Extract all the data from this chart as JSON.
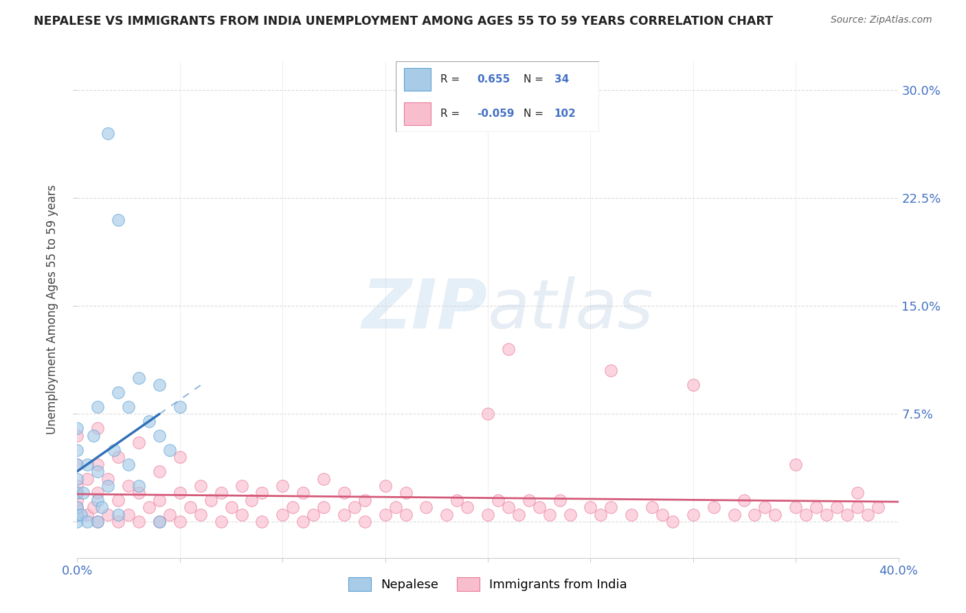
{
  "title": "NEPALESE VS IMMIGRANTS FROM INDIA UNEMPLOYMENT AMONG AGES 55 TO 59 YEARS CORRELATION CHART",
  "source": "Source: ZipAtlas.com",
  "ylabel": "Unemployment Among Ages 55 to 59 years",
  "xlim": [
    0.0,
    0.4
  ],
  "ylim": [
    -0.025,
    0.32
  ],
  "x_tick_positions": [
    0.0,
    0.05,
    0.1,
    0.15,
    0.2,
    0.25,
    0.3,
    0.35,
    0.4
  ],
  "x_tick_labels": [
    "0.0%",
    "",
    "",
    "",
    "",
    "",
    "",
    "",
    "40.0%"
  ],
  "y_tick_positions": [
    0.0,
    0.075,
    0.15,
    0.225,
    0.3
  ],
  "y_tick_labels": [
    "",
    "7.5%",
    "15.0%",
    "22.5%",
    "30.0%"
  ],
  "nepalese_R": 0.655,
  "nepalese_N": 34,
  "india_R": -0.059,
  "india_N": 102,
  "nepalese_color": "#a8cce8",
  "nepalese_edge_color": "#5a9fd4",
  "nepalese_line_color": "#3070b8",
  "india_color": "#f9bece",
  "india_edge_color": "#e87898",
  "india_line_color": "#d45878",
  "watermark_color": "#c8d8e8",
  "background_color": "#ffffff",
  "grid_color": "#cccccc",
  "nepalese_x": [
    0.0,
    0.0,
    0.0,
    0.0,
    0.0,
    0.0,
    0.0,
    0.0,
    0.002,
    0.003,
    0.005,
    0.005,
    0.008,
    0.01,
    0.01,
    0.01,
    0.01,
    0.012,
    0.015,
    0.018,
    0.02,
    0.02,
    0.025,
    0.025,
    0.03,
    0.03,
    0.035,
    0.04,
    0.04,
    0.04,
    0.045,
    0.05,
    0.02,
    0.015
  ],
  "nepalese_y": [
    0.0,
    0.005,
    0.01,
    0.02,
    0.03,
    0.04,
    0.05,
    0.065,
    0.005,
    0.02,
    0.0,
    0.04,
    0.06,
    0.0,
    0.015,
    0.035,
    0.08,
    0.01,
    0.025,
    0.05,
    0.005,
    0.09,
    0.04,
    0.08,
    0.025,
    0.1,
    0.07,
    0.0,
    0.06,
    0.095,
    0.05,
    0.08,
    0.21,
    0.27
  ],
  "india_x": [
    0.0,
    0.0,
    0.0,
    0.0,
    0.0,
    0.0,
    0.0,
    0.005,
    0.005,
    0.008,
    0.01,
    0.01,
    0.01,
    0.01,
    0.015,
    0.015,
    0.02,
    0.02,
    0.02,
    0.025,
    0.025,
    0.03,
    0.03,
    0.03,
    0.035,
    0.04,
    0.04,
    0.04,
    0.045,
    0.05,
    0.05,
    0.05,
    0.055,
    0.06,
    0.06,
    0.065,
    0.07,
    0.07,
    0.075,
    0.08,
    0.08,
    0.085,
    0.09,
    0.09,
    0.1,
    0.1,
    0.105,
    0.11,
    0.11,
    0.115,
    0.12,
    0.12,
    0.13,
    0.13,
    0.135,
    0.14,
    0.14,
    0.15,
    0.15,
    0.155,
    0.16,
    0.16,
    0.17,
    0.18,
    0.185,
    0.19,
    0.2,
    0.205,
    0.21,
    0.215,
    0.22,
    0.225,
    0.23,
    0.235,
    0.24,
    0.25,
    0.255,
    0.26,
    0.27,
    0.28,
    0.285,
    0.29,
    0.3,
    0.31,
    0.32,
    0.325,
    0.33,
    0.335,
    0.34,
    0.35,
    0.355,
    0.36,
    0.365,
    0.37,
    0.375,
    0.38,
    0.385,
    0.39,
    0.21,
    0.26,
    0.3,
    0.35,
    0.38,
    0.2
  ],
  "india_y": [
    0.005,
    0.01,
    0.015,
    0.02,
    0.025,
    0.04,
    0.06,
    0.005,
    0.03,
    0.01,
    0.0,
    0.02,
    0.04,
    0.065,
    0.005,
    0.03,
    0.0,
    0.015,
    0.045,
    0.005,
    0.025,
    0.0,
    0.02,
    0.055,
    0.01,
    0.0,
    0.015,
    0.035,
    0.005,
    0.0,
    0.02,
    0.045,
    0.01,
    0.005,
    0.025,
    0.015,
    0.0,
    0.02,
    0.01,
    0.005,
    0.025,
    0.015,
    0.0,
    0.02,
    0.005,
    0.025,
    0.01,
    0.0,
    0.02,
    0.005,
    0.01,
    0.03,
    0.005,
    0.02,
    0.01,
    0.0,
    0.015,
    0.005,
    0.025,
    0.01,
    0.005,
    0.02,
    0.01,
    0.005,
    0.015,
    0.01,
    0.005,
    0.015,
    0.01,
    0.005,
    0.015,
    0.01,
    0.005,
    0.015,
    0.005,
    0.01,
    0.005,
    0.01,
    0.005,
    0.01,
    0.005,
    0.0,
    0.005,
    0.01,
    0.005,
    0.015,
    0.005,
    0.01,
    0.005,
    0.01,
    0.005,
    0.01,
    0.005,
    0.01,
    0.005,
    0.01,
    0.005,
    0.01,
    0.12,
    0.105,
    0.095,
    0.04,
    0.02,
    0.075
  ]
}
